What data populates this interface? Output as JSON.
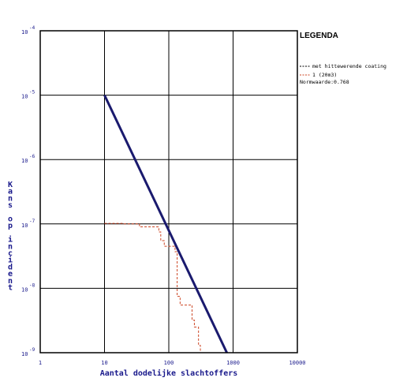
{
  "chart_data": {
    "type": "line",
    "xlabel": "Aantal dodelijke slachtoffers",
    "ylabel": "Kans op incident",
    "x_scale": "log",
    "y_scale": "log",
    "xlim": [
      1,
      10000
    ],
    "ylim": [
      1e-09,
      0.0001
    ],
    "grid": true,
    "x_ticks": [
      "1",
      "10",
      "100",
      "1000",
      "10000"
    ],
    "y_ticks": [
      {
        "base": "10",
        "exp": "-4",
        "value": 0.0001
      },
      {
        "base": "10",
        "exp": "-5",
        "value": 1e-05
      },
      {
        "base": "10",
        "exp": "-6",
        "value": 1e-06
      },
      {
        "base": "10",
        "exp": "-7",
        "value": 1e-07
      },
      {
        "base": "10",
        "exp": "-8",
        "value": 1e-08
      },
      {
        "base": "10",
        "exp": "-9",
        "value": 1e-09
      }
    ],
    "legend": {
      "title": "LEGENDA",
      "placement": "right",
      "entries": [
        {
          "label": "met hittewerende coating",
          "color": "#000000",
          "style": "dashed"
        },
        {
          "label": "1 (20m3)",
          "color": "#cc4422",
          "style": "dashed"
        }
      ],
      "note": "Normwaarde:0.768"
    },
    "series": [
      {
        "role": "norm",
        "color": "#1a1a6e",
        "x": [
          10,
          800
        ],
        "y": [
          1e-05,
          1e-09
        ]
      },
      {
        "name": "1 (20m3)",
        "color": "#cc4422",
        "style": "dashed",
        "step": true,
        "x": [
          10,
          20,
          35,
          70,
          75,
          85,
          125,
          135,
          150,
          230,
          250,
          290,
          310
        ],
        "y": [
          1.02e-07,
          1e-07,
          9e-08,
          7.5e-08,
          5.5e-08,
          4.5e-08,
          3.7e-08,
          7.5e-09,
          5.5e-09,
          3.2e-09,
          2.5e-09,
          1.3e-09,
          1e-09
        ]
      }
    ]
  }
}
